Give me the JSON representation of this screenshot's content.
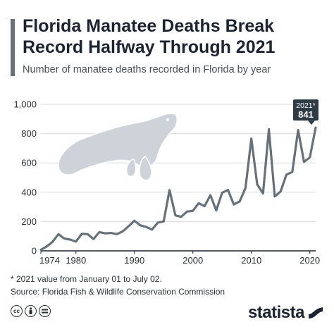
{
  "header": {
    "title": "Florida Manatee Deaths Break Record Halfway Through 2021",
    "subtitle": "Number of manatee deaths recorded in Florida by year"
  },
  "footer": {
    "footnote": "* 2021 value from January 01 to July 02.",
    "source": "Source: Florida Fish & Wildlife Conservation Commission",
    "logo": "statista"
  },
  "icons": {
    "illustration": "manatee-icon",
    "license": [
      "creative-commons-icon",
      "attribution-icon",
      "no-derivatives-icon"
    ],
    "logo_mark": "statista-logo-icon"
  },
  "colors": {
    "line": "#66717a",
    "accent": "#66717a",
    "callout": "#2f3b45",
    "grid": "#d9dcde",
    "axis": "#1c2331",
    "illustration": "#cdd3d8"
  },
  "chart_data": {
    "type": "line",
    "x": [
      1974,
      1975,
      1976,
      1977,
      1978,
      1979,
      1980,
      1981,
      1982,
      1983,
      1984,
      1985,
      1986,
      1987,
      1988,
      1989,
      1990,
      1991,
      1992,
      1993,
      1994,
      1995,
      1996,
      1997,
      1998,
      1999,
      2000,
      2001,
      2002,
      2003,
      2004,
      2005,
      2006,
      2007,
      2008,
      2009,
      2010,
      2011,
      2012,
      2013,
      2014,
      2015,
      2016,
      2017,
      2018,
      2019,
      2020,
      2021
    ],
    "values": [
      7,
      30,
      62,
      114,
      84,
      77,
      63,
      116,
      114,
      81,
      128,
      119,
      122,
      114,
      133,
      168,
      206,
      174,
      163,
      145,
      193,
      201,
      415,
      242,
      232,
      268,
      273,
      325,
      305,
      380,
      276,
      396,
      416,
      317,
      337,
      429,
      766,
      453,
      392,
      830,
      371,
      405,
      520,
      538,
      824,
      607,
      637,
      841
    ],
    "xticks": [
      "1974",
      "1980",
      "1990",
      "2000",
      "2010",
      "2020"
    ],
    "yticks": [
      "0",
      "200",
      "400",
      "600",
      "800",
      "1,000"
    ],
    "ylim": [
      0,
      1000
    ],
    "xlim": [
      1974,
      2021
    ],
    "grid": true,
    "callout": {
      "label": "2021*",
      "value": "841"
    }
  }
}
